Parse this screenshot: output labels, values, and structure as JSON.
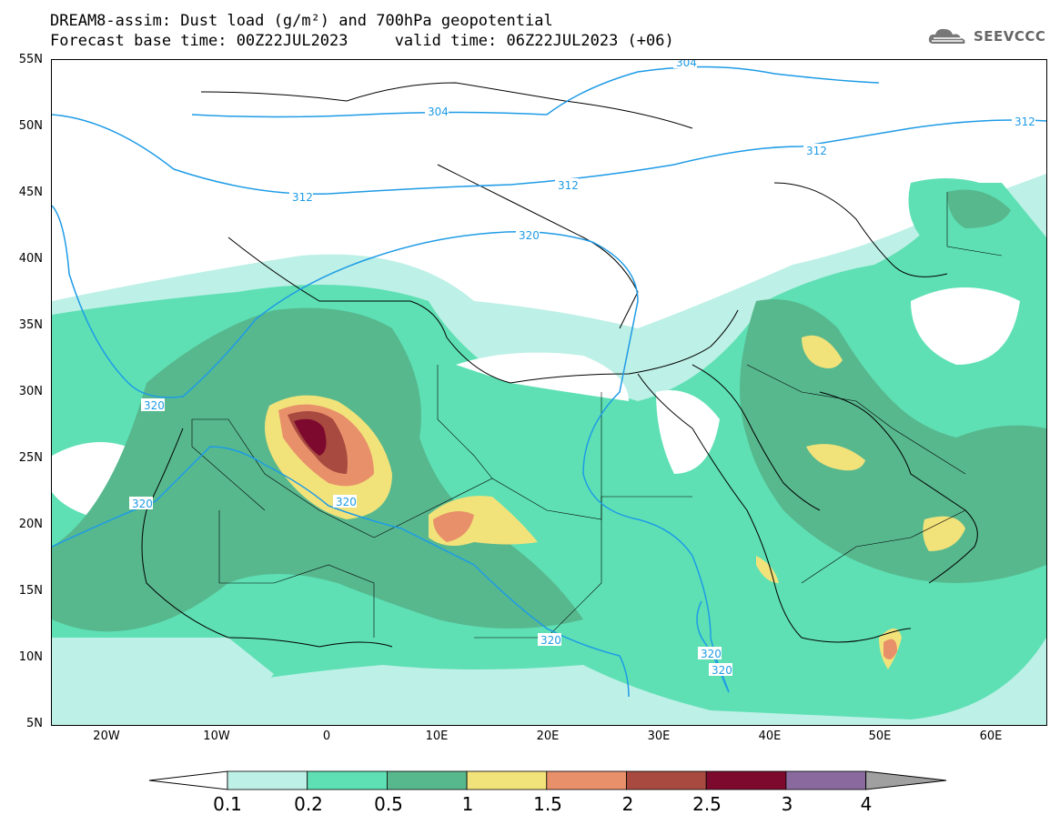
{
  "title": {
    "line1": "DREAM8-assim: Dust load (g/m²) and 700hPa geopotential",
    "line2": "Forecast base time: 00Z22JUL2023     valid time: 06Z22JUL2023 (+06)"
  },
  "logo": {
    "text": "SEEVCCC",
    "icon": "cloud-logo-icon"
  },
  "axes": {
    "y_labels": [
      "55N",
      "50N",
      "45N",
      "40N",
      "35N",
      "30N",
      "25N",
      "20N",
      "15N",
      "10N",
      "5N"
    ],
    "x_labels": [
      "20W",
      "10W",
      "0",
      "10E",
      "20E",
      "30E",
      "40E",
      "50E",
      "60E"
    ]
  },
  "contour_labels": [
    "304",
    "304",
    "312",
    "312",
    "312",
    "312",
    "320",
    "320",
    "320",
    "320",
    "320",
    "320",
    "320"
  ],
  "colorbar": {
    "labels": [
      "0.1",
      "0.2",
      "0.5",
      "1",
      "1.5",
      "2",
      "2.5",
      "3",
      "4"
    ],
    "colors": [
      "#ffffff",
      "#bdf0e6",
      "#5ee0b4",
      "#57b88e",
      "#f2e27a",
      "#e8906a",
      "#a84a40",
      "#7d0a2e",
      "#8a6a9e",
      "#a0a0a0"
    ]
  },
  "palette": {
    "contour_line": "#1e9be6",
    "border": "#000000"
  }
}
